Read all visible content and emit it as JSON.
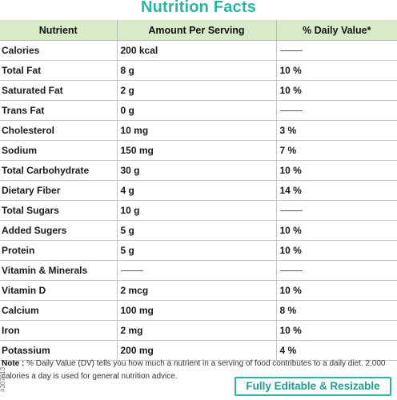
{
  "title": "Nutrition Facts",
  "headers": {
    "nutrient": "Nutrient",
    "amount": "Amount Per Serving",
    "dv": "% Daily Value*"
  },
  "rows": [
    {
      "nutrient": "Calories",
      "amount": "200 kcal",
      "dv": null
    },
    {
      "nutrient": "Total Fat",
      "amount": "8 g",
      "dv": "10 %"
    },
    {
      "nutrient": "Saturated Fat",
      "amount": "2 g",
      "dv": "10 %"
    },
    {
      "nutrient": "Trans Fat",
      "amount": "0 g",
      "dv": null
    },
    {
      "nutrient": "Cholesterol",
      "amount": "10 mg",
      "dv": "3 %"
    },
    {
      "nutrient": "Sodium",
      "amount": "150 mg",
      "dv": "7 %"
    },
    {
      "nutrient": "Total Carbohydrate",
      "amount": "30 g",
      "dv": "10 %"
    },
    {
      "nutrient": "Dietary Fiber",
      "amount": "4 g",
      "dv": "14 %"
    },
    {
      "nutrient": "Total Sugars",
      "amount": "10 g",
      "dv": null
    },
    {
      "nutrient": "Added Sugers",
      "amount": "5 g",
      "dv": "10 %"
    },
    {
      "nutrient": "Protein",
      "amount": "5 g",
      "dv": "10 %"
    },
    {
      "nutrient": "Vitamin & Minerals",
      "amount": null,
      "dv": null
    },
    {
      "nutrient": "Vitamin D",
      "amount": "2 mcg",
      "dv": "10 %"
    },
    {
      "nutrient": "Calcium",
      "amount": "100 mg",
      "dv": "8 %"
    },
    {
      "nutrient": "Iron",
      "amount": "2 mg",
      "dv": "10 %"
    },
    {
      "nutrient": "Potassium",
      "amount": "200 mg",
      "dv": "4 %"
    }
  ],
  "note": {
    "label": "Note : ",
    "text": "% Daily Value (DV) tells you how much a nutrient in a serving of food contributes to a daily diet. 2,000 calories a day is used for general nutrition advice."
  },
  "badge": "Fully Editable & Resizable",
  "stock_id": "#307013"
}
